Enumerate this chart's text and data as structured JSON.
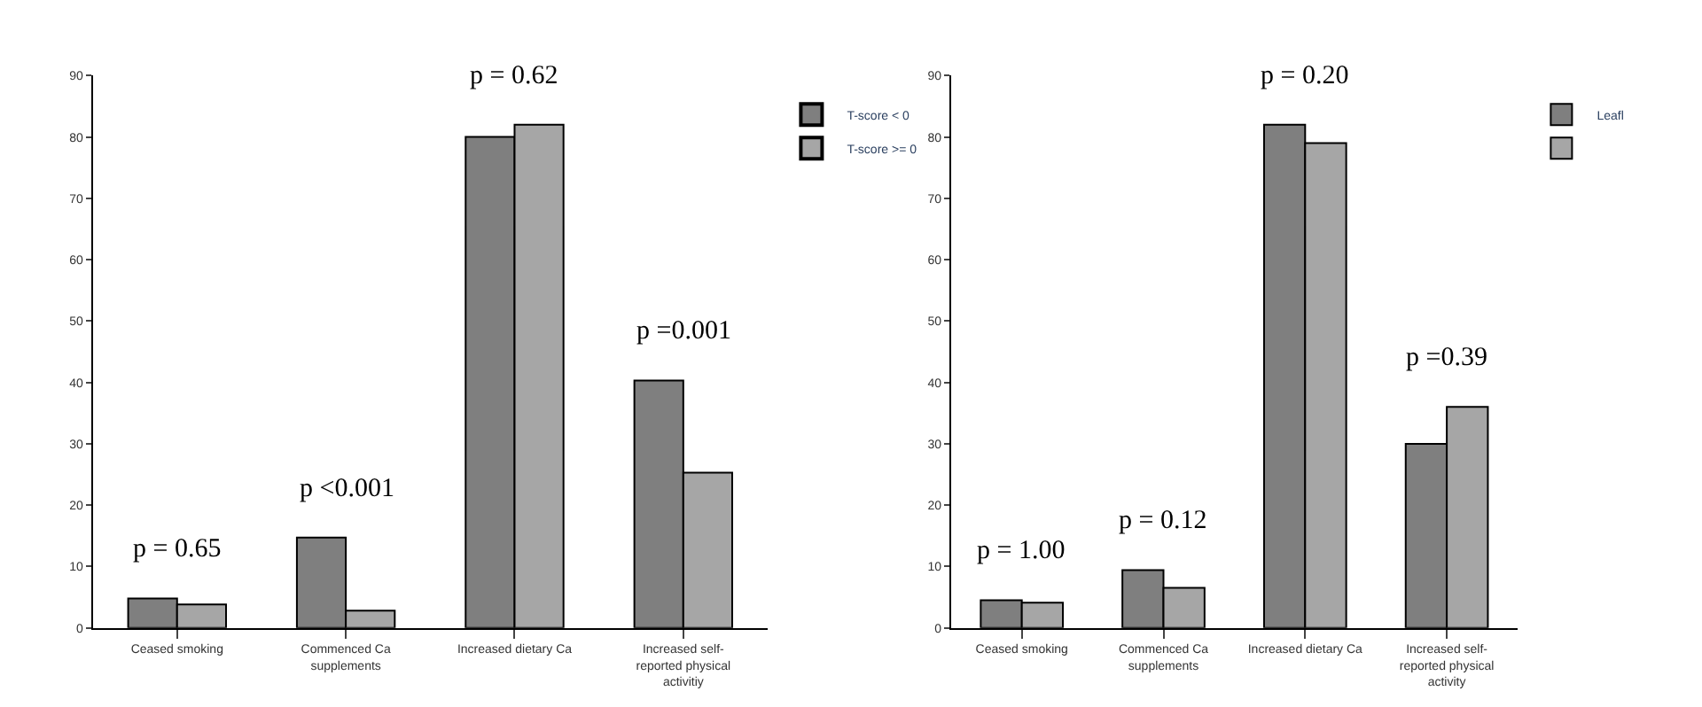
{
  "chart_data": [
    {
      "type": "bar",
      "categories": [
        "Ceased smoking",
        "Commenced Ca supplements",
        "Increased dietary Ca",
        "Increased self-reported physical activitiy"
      ],
      "series": [
        {
          "name": "T-score < 0",
          "color": "#7f7f7f",
          "values": [
            4.8,
            14.7,
            80,
            40.3
          ]
        },
        {
          "name": "T-score >= 0",
          "color": "#a6a6a6",
          "values": [
            3.8,
            2.8,
            82,
            25.3
          ]
        }
      ],
      "ylim": [
        0,
        90
      ],
      "yticks": [
        0,
        10,
        20,
        30,
        40,
        50,
        60,
        70,
        80,
        90
      ],
      "legend": "top right",
      "annotations": [
        "p = 0.65",
        "p <0.001",
        "p = 0.62",
        "p =0.001"
      ]
    },
    {
      "type": "bar",
      "categories": [
        "Ceased smoking",
        "Commenced Ca supplements",
        "Increased dietary Ca",
        "Increased self-reported physical activity"
      ],
      "series": [
        {
          "name": "Leafl",
          "color": "#7f7f7f",
          "values": [
            4.5,
            9.4,
            82,
            30
          ]
        },
        {
          "color": "#a6a6a6",
          "values": [
            4.1,
            6.5,
            79,
            36
          ]
        }
      ],
      "ylim": [
        0,
        90
      ],
      "yticks": [
        0,
        10,
        20,
        30,
        40,
        50,
        60,
        70,
        80,
        90
      ],
      "legend": "top right",
      "annotations": [
        "p = 1.00",
        "p = 0.12",
        "p = 0.20",
        "p =0.39"
      ]
    }
  ]
}
